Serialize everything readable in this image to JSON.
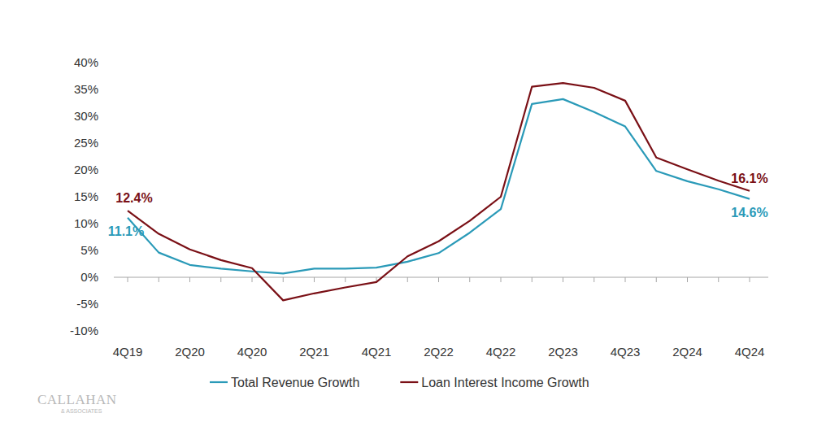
{
  "chart_data": {
    "type": "line",
    "categories": [
      "4Q19",
      null,
      "2Q20",
      null,
      "4Q20",
      null,
      "2Q21",
      null,
      "4Q21",
      null,
      "2Q22",
      null,
      "4Q22",
      null,
      "2Q23",
      null,
      "4Q23",
      null,
      "2Q24",
      null,
      "4Q24"
    ],
    "series": [
      {
        "name": "Total Revenue Growth",
        "color": "#2a9ab8",
        "values": [
          11.1,
          4.6,
          2.3,
          1.6,
          1.1,
          0.7,
          1.6,
          1.6,
          1.8,
          2.9,
          4.5,
          8.3,
          12.7,
          32.3,
          33.2,
          30.8,
          28.1,
          19.8,
          17.9,
          16.4,
          14.6
        ],
        "value_labels": [
          "11.1%",
          null,
          null,
          null,
          null,
          null,
          null,
          null,
          null,
          null,
          null,
          null,
          null,
          null,
          null,
          null,
          null,
          null,
          null,
          null,
          "14.6%"
        ]
      },
      {
        "name": "Loan Interest Income Growth",
        "color": "#7a1016",
        "values": [
          12.4,
          8.1,
          5.2,
          3.2,
          1.7,
          -4.3,
          -3.0,
          -1.9,
          -0.9,
          3.9,
          6.7,
          10.5,
          15.0,
          35.5,
          36.2,
          35.3,
          32.9,
          22.3,
          20.1,
          18.0,
          16.1
        ],
        "value_labels": [
          "12.4%",
          null,
          null,
          null,
          null,
          null,
          null,
          null,
          null,
          null,
          null,
          null,
          null,
          null,
          null,
          null,
          null,
          null,
          null,
          null,
          "16.1%"
        ]
      }
    ],
    "ylim": [
      -10,
      40
    ],
    "yticks": [
      {
        "value": -10,
        "label": "-10%"
      },
      {
        "value": -5,
        "label": "-5%"
      },
      {
        "value": 0,
        "label": "0%"
      },
      {
        "value": 5,
        "label": "5%"
      },
      {
        "value": 10,
        "label": "10%"
      },
      {
        "value": 15,
        "label": "15%"
      },
      {
        "value": 20,
        "label": "20%"
      },
      {
        "value": 25,
        "label": "25%"
      },
      {
        "value": 30,
        "label": "30%"
      },
      {
        "value": 35,
        "label": "35%"
      },
      {
        "value": 40,
        "label": "40%"
      }
    ],
    "grid": false,
    "legend": "bottom",
    "data_labels": true,
    "logo": [
      "CALLAHAN",
      "& ASSOCIATES"
    ]
  }
}
